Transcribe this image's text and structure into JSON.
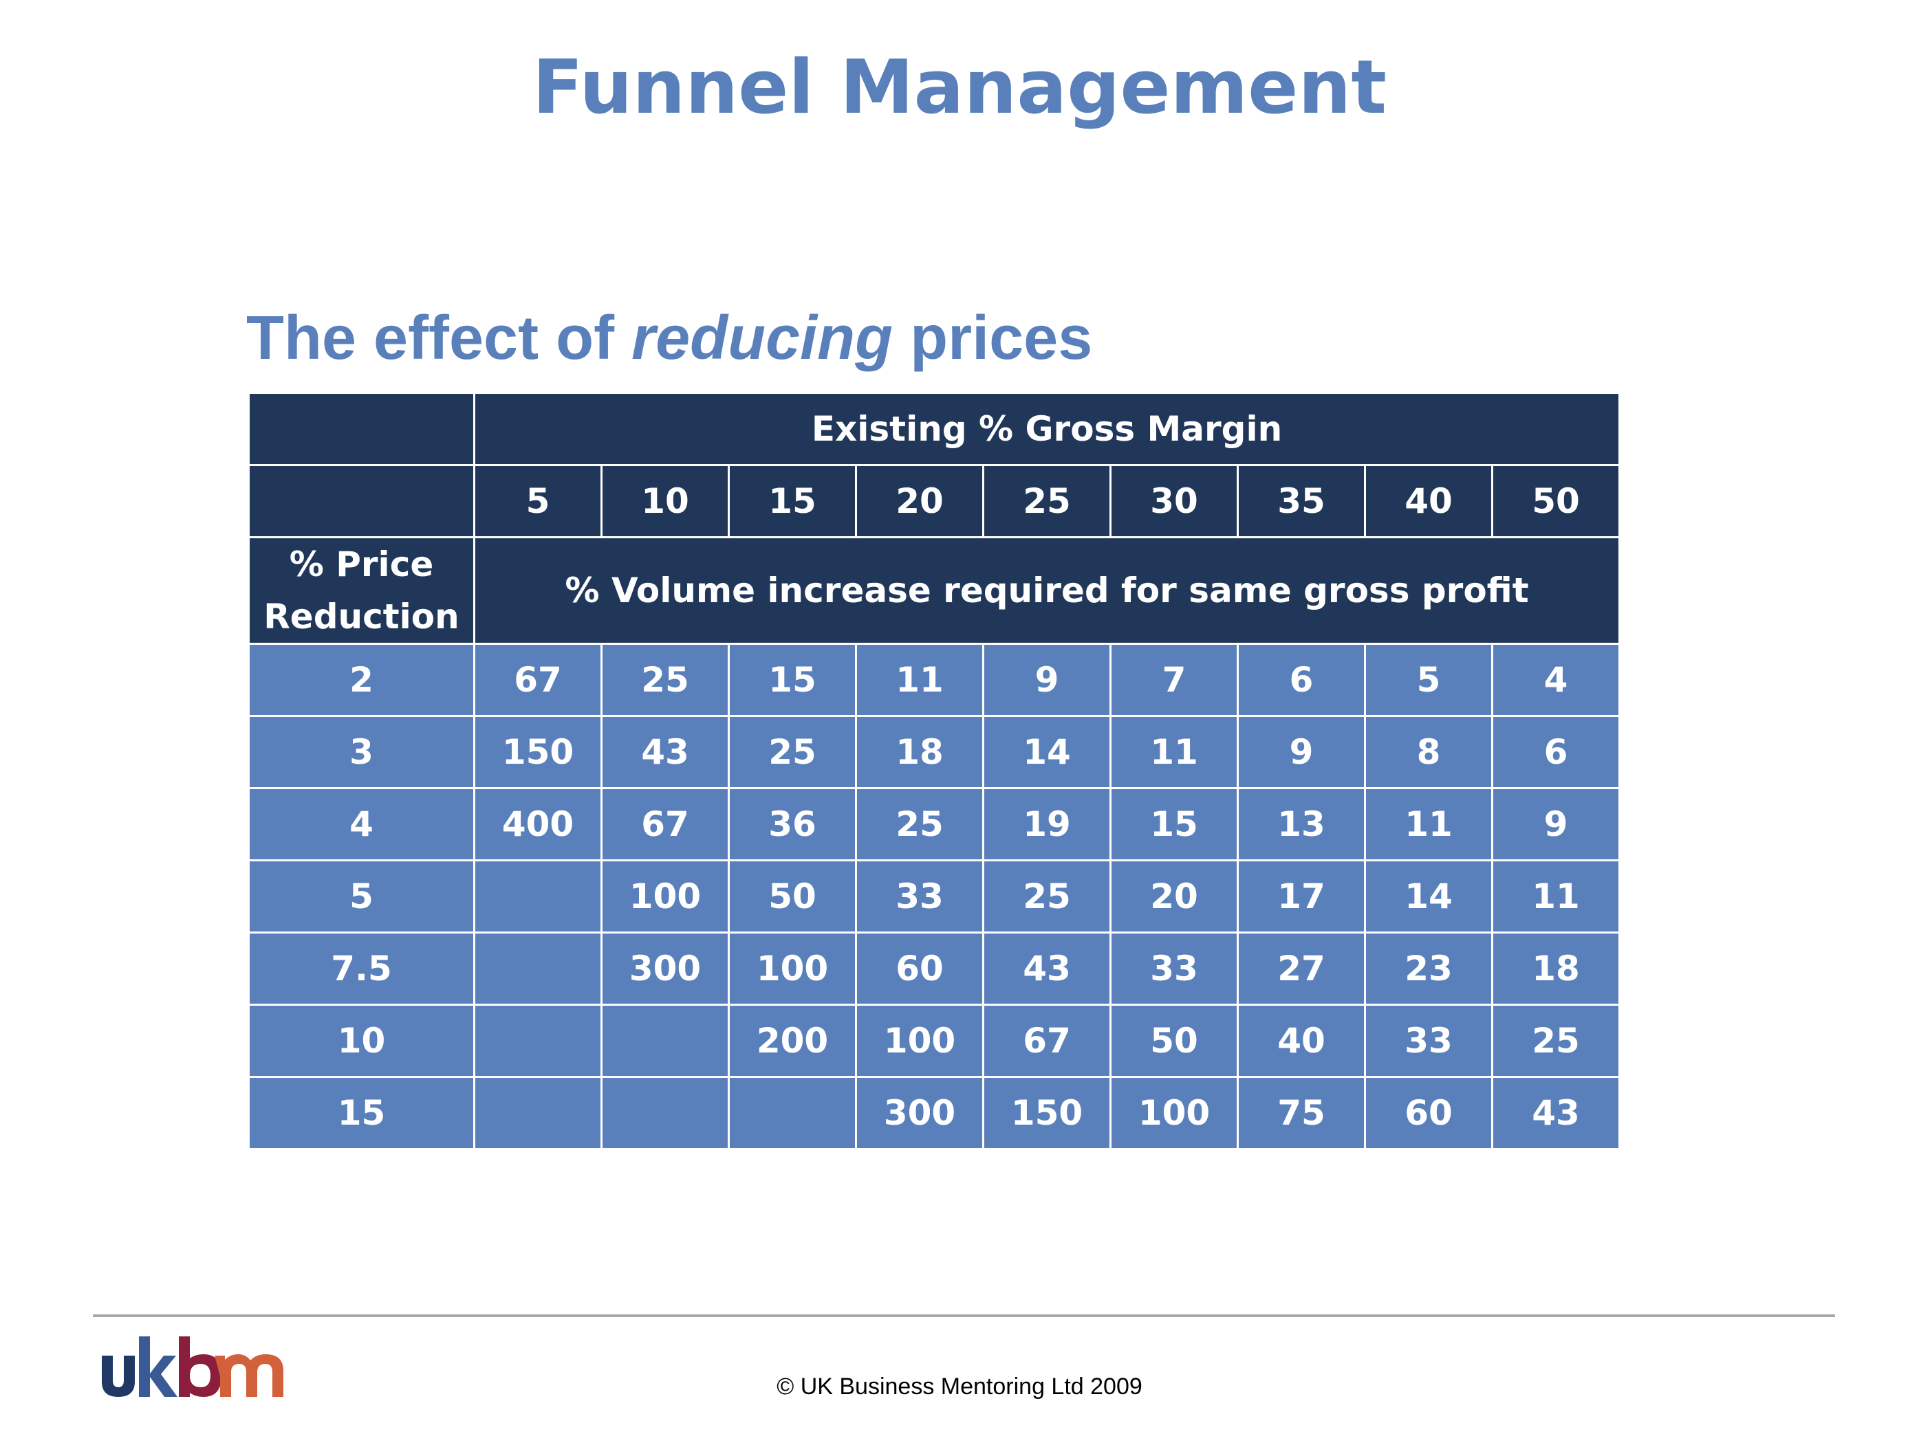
{
  "title": "Funnel Management",
  "subtitle": {
    "before": "The effect of ",
    "emphasis": "reducing",
    "after": " prices"
  },
  "table": {
    "group_header": "Existing % Gross Margin",
    "margins": [
      "5",
      "10",
      "15",
      "20",
      "25",
      "30",
      "35",
      "40",
      "50"
    ],
    "row_header_label_line1": "% Price",
    "row_header_label_line2": "Reduction",
    "body_header": "% Volume increase required for same gross profit",
    "rows": [
      {
        "reduction": "2",
        "values": [
          "67",
          "25",
          "15",
          "11",
          "9",
          "7",
          "6",
          "5",
          "4"
        ]
      },
      {
        "reduction": "3",
        "values": [
          "150",
          "43",
          "25",
          "18",
          "14",
          "11",
          "9",
          "8",
          "6"
        ]
      },
      {
        "reduction": "4",
        "values": [
          "400",
          "67",
          "36",
          "25",
          "19",
          "15",
          "13",
          "11",
          "9"
        ]
      },
      {
        "reduction": "5",
        "values": [
          "",
          "100",
          "50",
          "33",
          "25",
          "20",
          "17",
          "14",
          "11"
        ]
      },
      {
        "reduction": "7.5",
        "values": [
          "",
          "300",
          "100",
          "60",
          "43",
          "33",
          "27",
          "23",
          "18"
        ]
      },
      {
        "reduction": "10",
        "values": [
          "",
          "",
          "200",
          "100",
          "67",
          "50",
          "40",
          "33",
          "25"
        ]
      },
      {
        "reduction": "15",
        "values": [
          "",
          "",
          "",
          "300",
          "150",
          "100",
          "75",
          "60",
          "43"
        ]
      }
    ]
  },
  "logo": {
    "text": "ukbm",
    "colors": {
      "u": "#1f3864",
      "k": "#3a5a96",
      "b": "#8a1e3c",
      "m": "#d2603a"
    }
  },
  "footer": "© UK Business Mentoring Ltd 2009",
  "colors": {
    "accent": "#5a80bb",
    "header_dark": "#203759"
  }
}
